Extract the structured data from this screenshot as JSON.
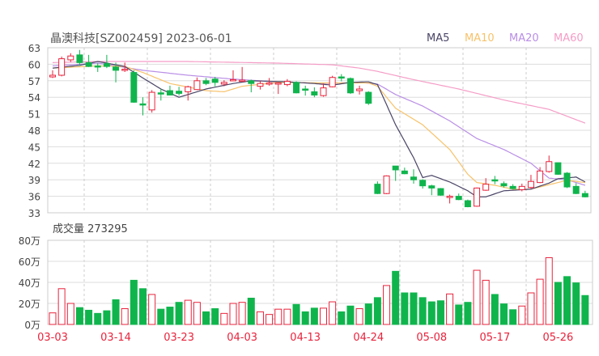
{
  "chart_data": {
    "type": "candlestick",
    "title": "晶澳科技[SZ002459] 2023-06-01",
    "legend": [
      {
        "name": "MA5",
        "color": "#4a4466"
      },
      {
        "name": "MA10",
        "color": "#f7c26a"
      },
      {
        "name": "MA20",
        "color": "#b98ee6"
      },
      {
        "name": "MA60",
        "color": "#f59cc6"
      }
    ],
    "legend_position": "top-right",
    "y_ticks": [
      "63",
      "60",
      "57",
      "54",
      "51",
      "48",
      "45",
      "42",
      "39",
      "36",
      "33"
    ],
    "ylim": [
      33,
      63
    ],
    "x_labels": [
      {
        "label": "03-03",
        "index": 0
      },
      {
        "label": "03-14",
        "index": 7
      },
      {
        "label": "03-23",
        "index": 14
      },
      {
        "label": "04-03",
        "index": 21
      },
      {
        "label": "04-13",
        "index": 28
      },
      {
        "label": "04-24",
        "index": 35
      },
      {
        "label": "05-08",
        "index": 42
      },
      {
        "label": "05-17",
        "index": 49
      },
      {
        "label": "05-26",
        "index": 56
      }
    ],
    "colors": {
      "up": "#e8233c",
      "down": "#0fb54c"
    },
    "ohlc": [
      [
        57.7,
        58.9,
        57.5,
        58.0
      ],
      [
        58.0,
        61.4,
        57.8,
        61.0
      ],
      [
        60.8,
        62.0,
        60.4,
        61.5
      ],
      [
        61.7,
        62.6,
        59.7,
        60.3
      ],
      [
        60.3,
        61.7,
        59.5,
        59.6
      ],
      [
        59.7,
        60.2,
        58.6,
        59.5
      ],
      [
        60.1,
        61.7,
        59.3,
        59.6
      ],
      [
        59.5,
        60.3,
        56.7,
        58.9
      ],
      [
        59.0,
        60.3,
        58.6,
        59.1
      ],
      [
        58.5,
        58.9,
        53.0,
        53.1
      ],
      [
        52.8,
        54.0,
        50.7,
        52.7
      ],
      [
        51.7,
        55.3,
        51.2,
        54.9
      ],
      [
        54.8,
        55.5,
        53.4,
        54.7
      ],
      [
        55.2,
        56.1,
        54.4,
        54.4
      ],
      [
        55.1,
        55.9,
        54.3,
        54.7
      ],
      [
        55.0,
        56.1,
        53.4,
        55.9
      ],
      [
        55.4,
        57.6,
        55.3,
        57.0
      ],
      [
        57.0,
        57.5,
        56.2,
        56.5
      ],
      [
        57.3,
        57.7,
        56.0,
        56.7
      ],
      [
        56.4,
        57.1,
        56.0,
        56.7
      ],
      [
        57.1,
        58.9,
        57.0,
        57.2
      ],
      [
        57.0,
        59.5,
        57.0,
        57.1
      ],
      [
        57.0,
        57.2,
        54.9,
        56.5
      ],
      [
        56.0,
        57.0,
        55.4,
        56.5
      ],
      [
        56.5,
        57.5,
        56.1,
        56.6
      ],
      [
        56.5,
        56.7,
        54.6,
        56.6
      ],
      [
        56.3,
        57.3,
        56.0,
        56.9
      ],
      [
        56.7,
        56.9,
        54.7,
        54.8
      ],
      [
        55.5,
        56.1,
        54.3,
        55.3
      ],
      [
        55.0,
        55.8,
        54.0,
        54.4
      ],
      [
        54.3,
        56.5,
        54.1,
        55.7
      ],
      [
        55.9,
        57.9,
        55.8,
        57.6
      ],
      [
        57.7,
        58.2,
        56.9,
        57.5
      ],
      [
        57.4,
        57.6,
        54.6,
        54.8
      ],
      [
        55.2,
        56.1,
        54.5,
        55.5
      ],
      [
        54.9,
        55.1,
        52.6,
        52.9
      ],
      [
        38.2,
        38.7,
        36.4,
        36.5
      ],
      [
        36.5,
        39.8,
        36.4,
        39.7
      ],
      [
        41.5,
        41.5,
        38.8,
        40.8
      ],
      [
        40.6,
        41.2,
        40.0,
        40.1
      ],
      [
        39.5,
        40.9,
        38.3,
        39.0
      ],
      [
        38.9,
        39.1,
        37.4,
        37.9
      ],
      [
        37.9,
        38.1,
        36.2,
        37.5
      ],
      [
        37.4,
        37.5,
        36.1,
        36.2
      ],
      [
        35.9,
        36.3,
        34.7,
        36.0
      ],
      [
        36.0,
        36.5,
        35.3,
        35.4
      ],
      [
        35.2,
        35.4,
        34.0,
        34.1
      ],
      [
        34.2,
        37.6,
        34.1,
        37.5
      ],
      [
        37.1,
        39.3,
        37.0,
        38.2
      ],
      [
        39.0,
        39.7,
        38.2,
        38.8
      ],
      [
        38.3,
        38.7,
        37.6,
        37.9
      ],
      [
        37.8,
        38.2,
        37.3,
        37.4
      ],
      [
        37.2,
        38.3,
        36.9,
        37.8
      ],
      [
        37.6,
        39.9,
        37.4,
        38.7
      ],
      [
        38.5,
        41.3,
        38.4,
        40.6
      ],
      [
        40.5,
        43.4,
        40.3,
        42.3
      ],
      [
        42.1,
        42.1,
        39.9,
        40.0
      ],
      [
        40.2,
        40.4,
        37.5,
        37.7
      ],
      [
        37.8,
        38.4,
        36.4,
        36.5
      ],
      [
        36.5,
        37.0,
        35.8,
        35.9
      ]
    ],
    "ma_keypoints": {
      "MA5": [
        [
          0,
          59.3
        ],
        [
          3,
          59.8
        ],
        [
          5,
          60.5
        ],
        [
          8,
          59.6
        ],
        [
          10,
          57.5
        ],
        [
          12,
          55.5
        ],
        [
          14,
          54.0
        ],
        [
          17,
          55.5
        ],
        [
          20,
          56.5
        ],
        [
          22,
          57.0
        ],
        [
          26,
          56.8
        ],
        [
          29,
          56.5
        ],
        [
          31,
          56.2
        ],
        [
          33,
          56.7
        ],
        [
          35,
          56.8
        ],
        [
          36,
          56.3
        ],
        [
          38,
          49
        ],
        [
          40,
          43
        ],
        [
          41,
          39.4
        ],
        [
          42,
          39.8
        ],
        [
          44,
          38.6
        ],
        [
          46,
          37
        ],
        [
          47,
          35.9
        ],
        [
          48,
          35.9
        ],
        [
          50,
          37
        ],
        [
          53,
          37.3
        ],
        [
          55,
          38.4
        ],
        [
          56,
          39.2
        ],
        [
          58,
          39.5
        ],
        [
          59,
          38.6
        ]
      ],
      "MA10": [
        [
          0,
          59.3
        ],
        [
          5,
          59.7
        ],
        [
          8,
          59.6
        ],
        [
          10,
          58.5
        ],
        [
          13,
          56.5
        ],
        [
          17,
          55.2
        ],
        [
          19,
          55.0
        ],
        [
          21,
          56.0
        ],
        [
          25,
          56.7
        ],
        [
          30,
          56.6
        ],
        [
          35,
          56.6
        ],
        [
          36,
          56
        ],
        [
          38,
          52
        ],
        [
          41,
          49
        ],
        [
          44,
          44.5
        ],
        [
          46,
          40
        ],
        [
          47,
          38.5
        ],
        [
          49,
          38
        ],
        [
          51,
          37.3
        ],
        [
          53,
          37.3
        ],
        [
          56,
          38.5
        ],
        [
          57,
          38.9
        ],
        [
          59,
          38.5
        ]
      ],
      "MA20": [
        [
          0,
          59.7
        ],
        [
          5,
          60.2
        ],
        [
          10,
          58.9
        ],
        [
          15,
          58.0
        ],
        [
          20,
          57.3
        ],
        [
          25,
          56.8
        ],
        [
          30,
          56.5
        ],
        [
          34,
          56.7
        ],
        [
          36,
          56.4
        ],
        [
          38,
          54.5
        ],
        [
          41,
          52.4
        ],
        [
          44,
          49.7
        ],
        [
          47,
          46.5
        ],
        [
          50,
          44.5
        ],
        [
          53,
          42
        ],
        [
          55,
          39.3
        ],
        [
          57,
          39
        ],
        [
          59,
          38
        ]
      ],
      "MA60": [
        [
          0,
          60.3
        ],
        [
          5,
          60.5
        ],
        [
          15,
          60.5
        ],
        [
          25,
          60.2
        ],
        [
          31,
          59.9
        ],
        [
          34,
          59.3
        ],
        [
          36,
          58.7
        ],
        [
          40,
          57.2
        ],
        [
          45,
          55.5
        ],
        [
          50,
          53.5
        ],
        [
          55,
          51.8
        ],
        [
          59,
          49.3
        ]
      ]
    },
    "volume": {
      "title": "成交量 273295",
      "unit": "万",
      "y_ticks": [
        "80万",
        "60万",
        "40万",
        "20万",
        "0万"
      ],
      "ylim": [
        0,
        80
      ],
      "values": [
        11,
        34,
        20,
        16,
        13.5,
        10.5,
        13,
        23.5,
        15,
        42,
        34,
        28.5,
        14.5,
        16.5,
        21,
        23,
        21,
        12,
        15,
        10.5,
        20,
        21,
        25,
        12,
        9.5,
        14.5,
        14.5,
        19,
        12,
        15.5,
        15.5,
        21.5,
        12,
        17.5,
        15,
        19.5,
        25.5,
        37,
        50.5,
        30,
        30,
        25.5,
        21.5,
        22.5,
        29,
        18.5,
        21,
        51.5,
        42,
        28.5,
        19.5,
        14,
        17.5,
        30,
        43,
        63.5,
        40,
        45.5,
        39.5,
        27.5
      ]
    }
  }
}
